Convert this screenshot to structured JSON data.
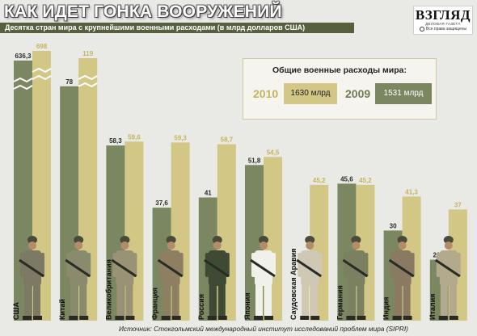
{
  "title": "КАК ИДЕТ ГОНКА ВООРУЖЕНИЙ",
  "subtitle": "Десятка стран мира с крупнейшими военными расходами (в млрд долларов США)",
  "logo": {
    "name": "ВЗГЛЯД",
    "tagline": "ДЕЛОВАЯ ГАЗЕТА",
    "rights": "Все права защищены"
  },
  "legend": {
    "heading": "Общие военные расходы мира:",
    "items": [
      {
        "year": "2010",
        "value": "1630 млрд"
      },
      {
        "year": "2009",
        "value": "1531 млрд"
      }
    ]
  },
  "source": "Источник: Стокгольмский международный институт исследований проблем мира (SIPRI)",
  "colors": {
    "background": "#e9e9e6",
    "subtitle_bar": "#56603f",
    "series_2009": "#7b8760",
    "series_2010": "#d2c785",
    "label_2009": "#2b2b2b",
    "label_2010": "#c4b45d"
  },
  "chart_data": {
    "type": "bar",
    "categories": [
      "США",
      "Китай",
      "Великобритания",
      "Франция",
      "Россия",
      "Япония",
      "Саудовская Аравия",
      "Германия",
      "Индия",
      "Италия"
    ],
    "series": [
      {
        "name": "2009",
        "values": [
          636.3,
          78,
          58.3,
          37.6,
          41,
          51.8,
          null,
          45.6,
          30,
          20.3
        ]
      },
      {
        "name": "2010",
        "values": [
          698,
          119,
          59.6,
          59.3,
          58.7,
          54.5,
          45.2,
          45.2,
          41.3,
          37
        ]
      }
    ],
    "grid": false,
    "legend_position": "top-right"
  }
}
